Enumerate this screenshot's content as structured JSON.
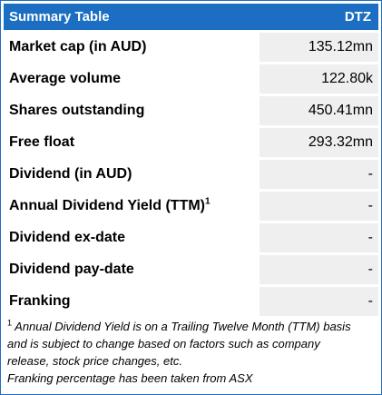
{
  "table": {
    "title": "Summary Table",
    "ticker": "DTZ",
    "rows": [
      {
        "label": "Market cap (in AUD)",
        "value": "135.12mn"
      },
      {
        "label": "Average volume",
        "value": "122.80k"
      },
      {
        "label": "Shares outstanding",
        "value": "450.41mn"
      },
      {
        "label": "Free float",
        "value": "293.32mn"
      },
      {
        "label": "Dividend (in AUD)",
        "value": "-"
      },
      {
        "label": "Annual Dividend Yield (TTM)",
        "value": "-",
        "sup": "1"
      },
      {
        "label": "Dividend ex-date",
        "value": "-"
      },
      {
        "label": "Dividend pay-date",
        "value": "-"
      },
      {
        "label": "Franking",
        "value": "-"
      }
    ]
  },
  "footnote": {
    "marker": "1",
    "text_1": " Annual Dividend Yield is on a Trailing Twelve Month (TTM) basis",
    "text_2": "and is subject to change based on factors such as company",
    "text_3": "release, stock price changes, etc.",
    "text_4": "Franking percentage has been taken from ASX"
  },
  "colors": {
    "header_bg": "#1b6ec2",
    "border": "#1f6fbf",
    "value_bg": "#efefef"
  }
}
